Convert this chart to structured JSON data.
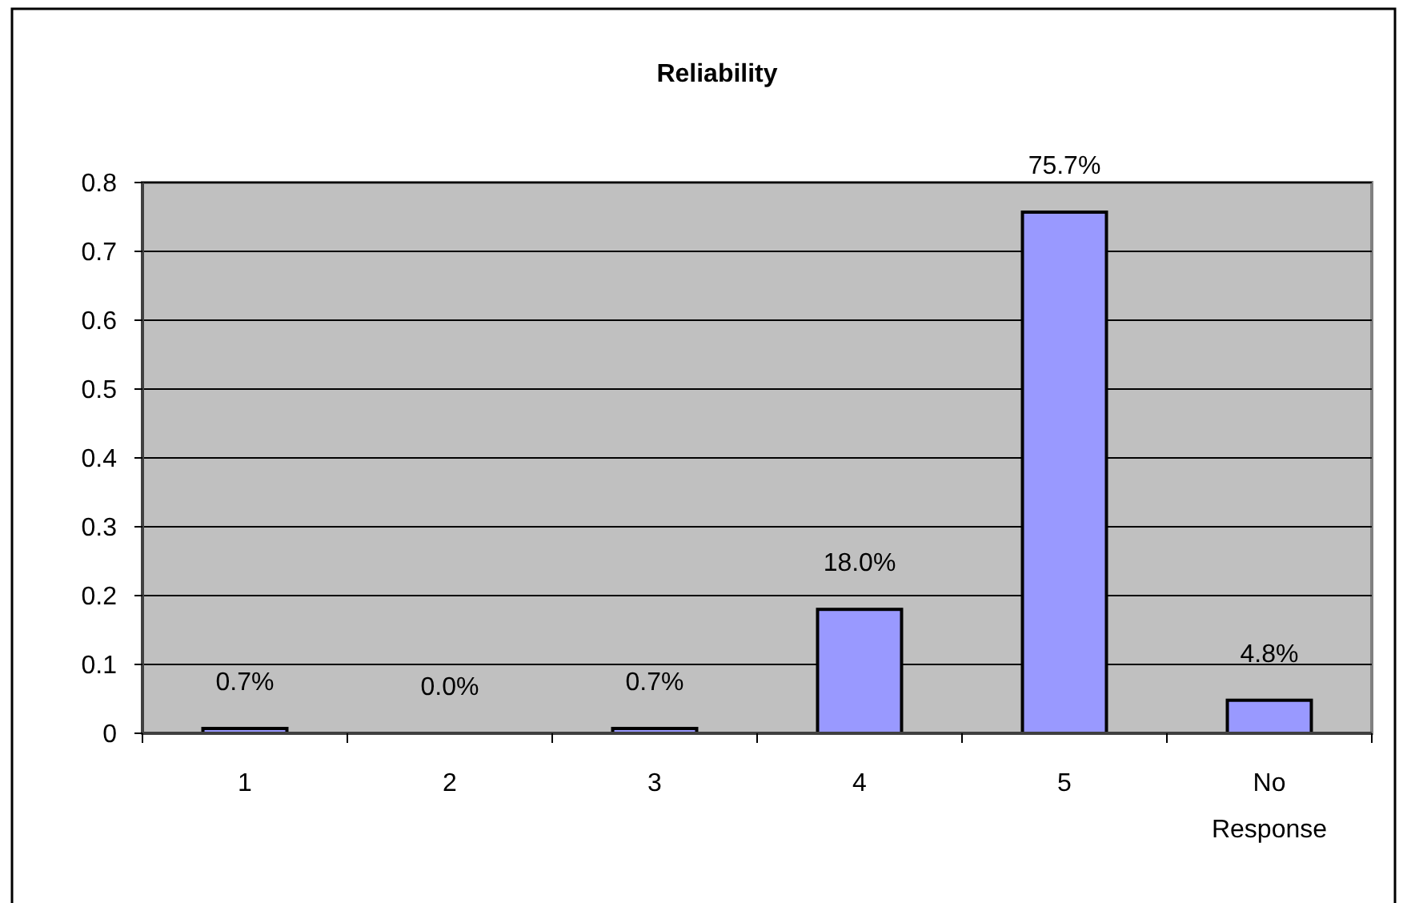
{
  "chart_data": {
    "type": "bar",
    "title": "Reliability",
    "categories": [
      "1",
      "2",
      "3",
      "4",
      "5",
      "No Response"
    ],
    "values": [
      0.007,
      0,
      0.007,
      0.18,
      0.757,
      0.048
    ],
    "color": "#9999ff",
    "value_labels": [
      "0.7%",
      "0.0%",
      "0.7%",
      "18.0%",
      "75.7%",
      "4.8%"
    ],
    "ylim": [
      0,
      0.8
    ],
    "yticks": [
      0,
      0.1,
      0.2,
      0.3,
      0.4,
      0.5,
      0.6,
      0.7,
      0.8
    ],
    "grid": "y"
  }
}
